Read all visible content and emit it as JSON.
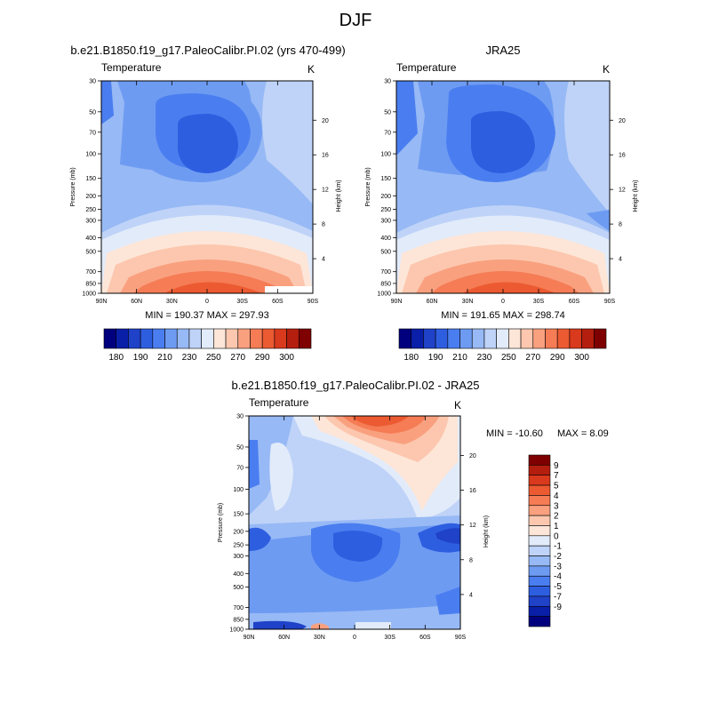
{
  "title": "DJF",
  "palette_abs": [
    "#00007f",
    "#0a1fa8",
    "#1f42c8",
    "#2e5ee0",
    "#4a7ef0",
    "#6e9bf2",
    "#97b9f5",
    "#bfd3f8",
    "#e2ebfa",
    "#fde6d8",
    "#fcc7ae",
    "#f9a07f",
    "#f57c55",
    "#ec5a32",
    "#d9391c",
    "#b41e0e",
    "#7f0000"
  ],
  "palette_diff": [
    "#00007f",
    "#0a1fa8",
    "#1f42c8",
    "#2e5ee0",
    "#4a7ef0",
    "#6e9bf2",
    "#97b9f5",
    "#bfd3f8",
    "#e2ebfa",
    "#fde6d8",
    "#fcc7ae",
    "#f9a07f",
    "#f57c55",
    "#ec5a32",
    "#d9391c",
    "#b41e0e",
    "#7f0000"
  ],
  "chart_data": [
    {
      "type": "heatmap",
      "title": "b.e21.B1850.f19_g17.PaleoCalibr.PI.02 (yrs 470-499)",
      "left_label": "Temperature",
      "right_label": "K",
      "xlabel": "",
      "ylabel": "Pressure (mb)",
      "y2label": "Height (km)",
      "x_ticks": [
        "90N",
        "60N",
        "30N",
        "0",
        "30S",
        "60S",
        "90S"
      ],
      "y_ticks": [
        "30",
        "50",
        "70",
        "100",
        "150",
        "200",
        "250",
        "300",
        "400",
        "500",
        "700",
        "850",
        "1000"
      ],
      "y2_ticks": [
        "20",
        "16",
        "12",
        "8",
        "4"
      ],
      "stats": "MIN = 190.37  MAX = 297.93",
      "colorbar_labels": [
        "180",
        "190",
        "210",
        "230",
        "250",
        "270",
        "290",
        "300"
      ],
      "colorbar_levels": [
        175,
        180,
        185,
        190,
        200,
        210,
        220,
        230,
        240,
        250,
        260,
        270,
        280,
        290,
        295,
        300,
        305
      ],
      "grid": false
    },
    {
      "type": "heatmap",
      "title": "JRA25",
      "left_label": "Temperature",
      "right_label": "K",
      "xlabel": "",
      "ylabel": "Pressure (mb)",
      "y2label": "Height (km)",
      "x_ticks": [
        "90N",
        "60N",
        "30N",
        "0",
        "30S",
        "60S",
        "90S"
      ],
      "y_ticks": [
        "30",
        "50",
        "70",
        "100",
        "150",
        "200",
        "250",
        "300",
        "400",
        "500",
        "700",
        "850",
        "1000"
      ],
      "y2_ticks": [
        "20",
        "16",
        "12",
        "8",
        "4"
      ],
      "stats": "MIN = 191.65  MAX = 298.74",
      "colorbar_labels": [
        "180",
        "190",
        "210",
        "230",
        "250",
        "270",
        "290",
        "300"
      ],
      "colorbar_levels": [
        175,
        180,
        185,
        190,
        200,
        210,
        220,
        230,
        240,
        250,
        260,
        270,
        280,
        290,
        295,
        300,
        305
      ],
      "grid": false
    },
    {
      "type": "heatmap",
      "title": "b.e21.B1850.f19_g17.PaleoCalibr.PI.02 - JRA25",
      "left_label": "Temperature",
      "right_label": "K",
      "xlabel": "",
      "ylabel": "Pressure (mb)",
      "y2label": "Height (km)",
      "x_ticks": [
        "90N",
        "60N",
        "30N",
        "0",
        "30S",
        "60S",
        "90S"
      ],
      "y_ticks": [
        "30",
        "50",
        "70",
        "100",
        "150",
        "200",
        "250",
        "300",
        "400",
        "500",
        "700",
        "850",
        "1000"
      ],
      "y2_ticks": [
        "20",
        "16",
        "12",
        "8",
        "4"
      ],
      "stats_min": "MIN = -10.60",
      "stats_max": "MAX =   8.09",
      "colorbar_labels": [
        "9",
        "7",
        "5",
        "4",
        "3",
        "2",
        "1",
        "0",
        "-1",
        "-2",
        "-3",
        "-4",
        "-5",
        "-7",
        "-9"
      ],
      "colorbar_levels": [
        -9,
        -7,
        -5,
        -4,
        -3,
        -2,
        -1,
        0,
        1,
        2,
        3,
        4,
        5,
        7,
        9
      ],
      "grid": false
    }
  ]
}
